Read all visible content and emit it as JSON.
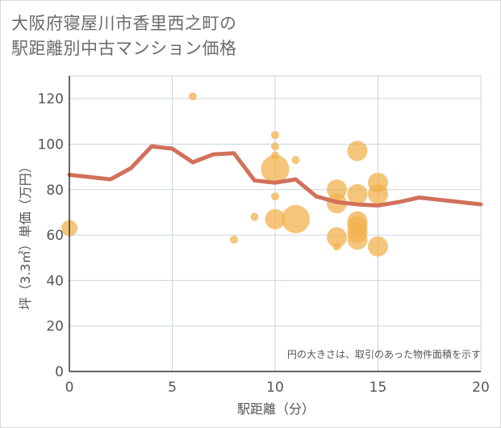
{
  "title_line1": "大阪府寝屋川市香里西之町の",
  "title_line2": "駅距離別中古マンション価格",
  "chart_data": {
    "type": "scatter",
    "xlabel": "駅距離（分）",
    "ylabel": "坪（3.3㎡）単価（万円）",
    "xlim": [
      0,
      20
    ],
    "ylim": [
      0,
      130
    ],
    "x_ticks": [
      "0",
      "5",
      "10",
      "15",
      "20"
    ],
    "y_ticks": [
      "0",
      "20",
      "40",
      "60",
      "80",
      "100",
      "120"
    ],
    "grid": true,
    "note": "円の大きさは、取引のあった物件面積を示す",
    "colors": {
      "bubble": "#f2b14f",
      "line": "#d2705a",
      "grid": "#c9d5de"
    },
    "bubbles": [
      {
        "x": 0,
        "y": 63,
        "size": 3
      },
      {
        "x": 6,
        "y": 121,
        "size": 1
      },
      {
        "x": 8,
        "y": 58,
        "size": 1
      },
      {
        "x": 9,
        "y": 68,
        "size": 1
      },
      {
        "x": 10,
        "y": 104,
        "size": 1
      },
      {
        "x": 10,
        "y": 99,
        "size": 1
      },
      {
        "x": 10,
        "y": 95,
        "size": 1
      },
      {
        "x": 10,
        "y": 89,
        "size": 6
      },
      {
        "x": 10,
        "y": 77,
        "size": 1
      },
      {
        "x": 10,
        "y": 67,
        "size": 4
      },
      {
        "x": 11,
        "y": 93,
        "size": 1
      },
      {
        "x": 11,
        "y": 67,
        "size": 6
      },
      {
        "x": 13,
        "y": 80,
        "size": 4
      },
      {
        "x": 13,
        "y": 74,
        "size": 4
      },
      {
        "x": 13,
        "y": 59,
        "size": 4
      },
      {
        "x": 13,
        "y": 55,
        "size": 1
      },
      {
        "x": 14,
        "y": 97,
        "size": 4
      },
      {
        "x": 14,
        "y": 78,
        "size": 4
      },
      {
        "x": 14,
        "y": 66,
        "size": 4
      },
      {
        "x": 14,
        "y": 64,
        "size": 4
      },
      {
        "x": 14,
        "y": 61,
        "size": 4
      },
      {
        "x": 14,
        "y": 58,
        "size": 4
      },
      {
        "x": 15,
        "y": 83,
        "size": 4
      },
      {
        "x": 15,
        "y": 78,
        "size": 4
      },
      {
        "x": 15,
        "y": 55,
        "size": 4
      }
    ],
    "trend_line": {
      "x": [
        0,
        1,
        2,
        3,
        4,
        5,
        6,
        7,
        8,
        9,
        10,
        11,
        12,
        13,
        14,
        15,
        16,
        17,
        18,
        19,
        20
      ],
      "y": [
        86.5,
        85.5,
        84.5,
        89.5,
        99,
        98,
        92,
        95.5,
        96,
        84,
        83,
        84.5,
        77,
        74.5,
        73.5,
        73,
        74.5,
        76.5,
        75.5,
        74.5,
        73.5
      ]
    }
  }
}
